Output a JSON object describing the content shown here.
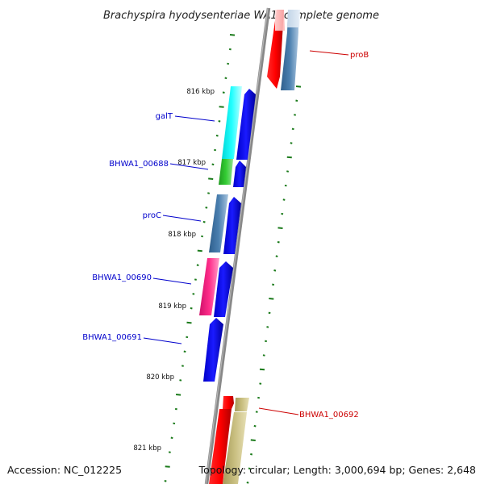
{
  "title": "Brachyspira hyodysenteriae WA1, complete genome",
  "accession": "Accession: NC_012225",
  "topology": "Topology: circular; Length: 3,000,694 bp; Genes: 2,648",
  "colors": {
    "backbone": "#888888",
    "tick": "#1a7a1a",
    "forward_label": "#cc0000",
    "reverse_label": "#0000cc"
  },
  "kbp_ticks": [
    {
      "label": "816 kbp"
    },
    {
      "label": "817 kbp"
    },
    {
      "label": "818 kbp"
    },
    {
      "label": "819 kbp"
    },
    {
      "label": "820 kbp"
    },
    {
      "label": "821 kbp"
    }
  ],
  "gene_labels": [
    {
      "text": "proB",
      "strand": "forward"
    },
    {
      "text": "galT",
      "strand": "reverse"
    },
    {
      "text": "BHWA1_00688",
      "strand": "reverse"
    },
    {
      "text": "proC",
      "strand": "reverse"
    },
    {
      "text": "BHWA1_00690",
      "strand": "reverse"
    },
    {
      "text": "BHWA1_00691",
      "strand": "reverse"
    },
    {
      "text": "BHWA1_00692",
      "strand": "forward"
    }
  ]
}
